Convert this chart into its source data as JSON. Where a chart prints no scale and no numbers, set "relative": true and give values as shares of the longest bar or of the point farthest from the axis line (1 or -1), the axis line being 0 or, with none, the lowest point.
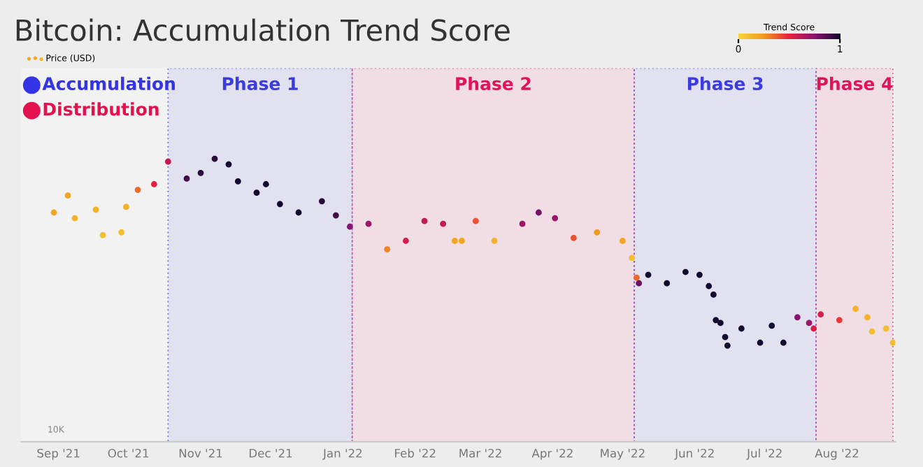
{
  "chart_data": {
    "type": "scatter",
    "title": "Bitcoin: Accumulation Trend Score",
    "relative": true,
    "marker": "circle",
    "legend": "top left",
    "clabel": "Trend Score",
    "clim": [
      0,
      1
    ],
    "cticks": [
      0,
      1
    ],
    "annotations": [
      "Accumulation",
      "Distribution",
      "10K"
    ],
    "xlim": [
      "2021-08-16",
      "2022-08-26"
    ],
    "xticks": [
      {
        "value": "2021-09-01",
        "label": "Sep '21"
      },
      {
        "value": "2021-10-01",
        "label": "Oct '21"
      },
      {
        "value": "2021-11-01",
        "label": "Nov '21"
      },
      {
        "value": "2021-12-01",
        "label": "Dec '21"
      },
      {
        "value": "2022-01-01",
        "label": "Jan '22"
      },
      {
        "value": "2022-02-01",
        "label": "Feb '22"
      },
      {
        "value": "2022-03-01",
        "label": "Mar '22"
      },
      {
        "value": "2022-04-01",
        "label": "Apr '22"
      },
      {
        "value": "2022-05-01",
        "label": "May '22"
      },
      {
        "value": "2022-06-01",
        "label": "Jun '22"
      },
      {
        "value": "2022-07-01",
        "label": "Jul '22"
      },
      {
        "value": "2022-08-01",
        "label": "Aug '22"
      }
    ],
    "bands": [
      {
        "axis": "x",
        "from": "2021-10-18",
        "to": "2022-01-05",
        "label": "Phase 1",
        "color": "#3b3be0"
      },
      {
        "axis": "x",
        "from": "2022-01-05",
        "to": "2022-05-06",
        "label": "Phase 2",
        "color": "#e0145a"
      },
      {
        "axis": "x",
        "from": "2022-05-06",
        "to": "2022-07-23",
        "label": "Phase 3",
        "color": "#3b3be0"
      },
      {
        "axis": "x",
        "from": "2022-07-23",
        "to": "2022-08-25",
        "label": "Phase 4",
        "color": "#e0145a"
      }
    ],
    "series": [
      {
        "name": "Price (USD)",
        "x": [
          "2021-08-30",
          "2021-09-05",
          "2021-09-08",
          "2021-09-17",
          "2021-09-20",
          "2021-09-28",
          "2021-09-30",
          "2021-10-05",
          "2021-10-12",
          "2021-10-18",
          "2021-10-26",
          "2021-11-01",
          "2021-11-07",
          "2021-11-13",
          "2021-11-17",
          "2021-11-25",
          "2021-11-29",
          "2021-12-05",
          "2021-12-13",
          "2021-12-23",
          "2021-12-29",
          "2022-01-04",
          "2022-01-12",
          "2022-01-20",
          "2022-01-28",
          "2022-02-05",
          "2022-02-13",
          "2022-02-18",
          "2022-02-21",
          "2022-02-27",
          "2022-03-07",
          "2022-03-19",
          "2022-03-26",
          "2022-04-02",
          "2022-04-10",
          "2022-04-20",
          "2022-05-01",
          "2022-05-05",
          "2022-05-07",
          "2022-05-08",
          "2022-05-12",
          "2022-05-20",
          "2022-05-28",
          "2022-06-03",
          "2022-06-07",
          "2022-06-09",
          "2022-06-10",
          "2022-06-12",
          "2022-06-14",
          "2022-06-15",
          "2022-06-21",
          "2022-06-29",
          "2022-07-04",
          "2022-07-09",
          "2022-07-15",
          "2022-07-20",
          "2022-07-22",
          "2022-07-25",
          "2022-08-02",
          "2022-08-09",
          "2022-08-14",
          "2022-08-16",
          "2022-08-22",
          "2022-08-25"
        ],
        "values": [
          0.81,
          0.87,
          0.79,
          0.82,
          0.73,
          0.74,
          0.83,
          0.89,
          0.91,
          0.99,
          0.93,
          0.95,
          1.0,
          0.98,
          0.92,
          0.88,
          0.91,
          0.84,
          0.81,
          0.85,
          0.8,
          0.76,
          0.77,
          0.68,
          0.71,
          0.78,
          0.77,
          0.71,
          0.71,
          0.78,
          0.71,
          0.77,
          0.81,
          0.79,
          0.72,
          0.74,
          0.71,
          0.65,
          0.58,
          0.56,
          0.59,
          0.56,
          0.6,
          0.59,
          0.55,
          0.52,
          0.43,
          0.42,
          0.37,
          0.34,
          0.4,
          0.35,
          0.41,
          0.35,
          0.44,
          0.42,
          0.4,
          0.45,
          0.43,
          0.47,
          0.44,
          0.39,
          0.4,
          0.35
        ],
        "cvalues": [
          0.2,
          0.2,
          0.15,
          0.15,
          0.1,
          0.1,
          0.15,
          0.35,
          0.5,
          0.6,
          0.9,
          0.95,
          0.95,
          1.0,
          1.0,
          1.0,
          1.0,
          1.0,
          1.0,
          0.95,
          0.9,
          0.75,
          0.7,
          0.3,
          0.55,
          0.6,
          0.6,
          0.2,
          0.2,
          0.4,
          0.15,
          0.7,
          0.8,
          0.7,
          0.4,
          0.25,
          0.2,
          0.1,
          0.35,
          0.8,
          1.0,
          1.0,
          1.0,
          1.0,
          1.0,
          1.0,
          1.0,
          1.0,
          1.0,
          1.0,
          1.0,
          1.0,
          1.0,
          1.0,
          0.75,
          0.7,
          0.55,
          0.55,
          0.45,
          0.15,
          0.15,
          0.1,
          0.1,
          0.1
        ]
      }
    ]
  }
}
